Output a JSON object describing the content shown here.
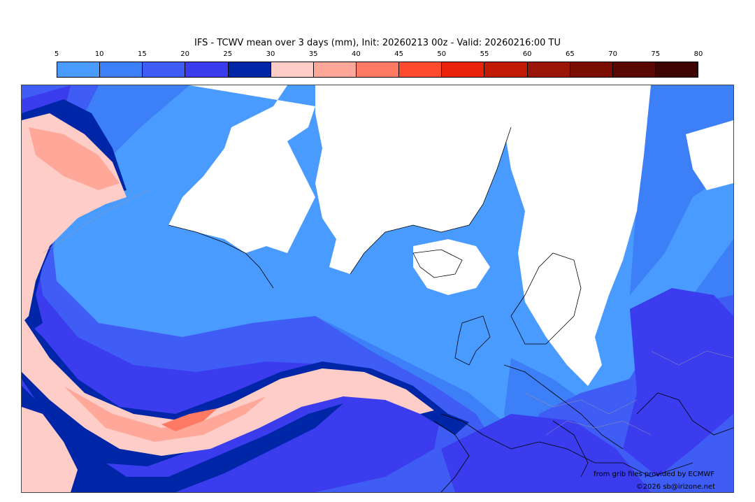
{
  "title": "IFS - TCWV mean over 3 days (mm), Init: 20260213 00z - Valid: 20260216:00 TU",
  "colorbar": {
    "ticks": [
      "5",
      "10",
      "15",
      "20",
      "25",
      "30",
      "35",
      "40",
      "45",
      "50",
      "55",
      "60",
      "65",
      "70",
      "75",
      "80"
    ],
    "colors": [
      "#4a9bff",
      "#3d7ff7",
      "#3f5cf5",
      "#3b3cee",
      "#0026a8",
      "#ffcdc7",
      "#ffa89a",
      "#ff7a63",
      "#ff4a2e",
      "#e8230a",
      "#c11a05",
      "#9a1507",
      "#7a0e03",
      "#5a0803",
      "#3d0301"
    ]
  },
  "map": {
    "colors": {
      "band_5_10": "#4a9bff",
      "band_10_15": "#3d7ff7",
      "band_15_20": "#3f5cf5",
      "band_20_25": "#3b3cee",
      "band_25_30": "#0026a8",
      "band_30_35": "#ffcdc7",
      "band_35_40": "#ffa89a",
      "band_40_45": "#ff7a63",
      "below_5": "#ffffff",
      "coastline": "#000000",
      "border": "#9a9a9a"
    }
  },
  "credits": {
    "source": "from grib files provided by ECMWF",
    "copyright": "©2026 sb@irizone.net"
  }
}
